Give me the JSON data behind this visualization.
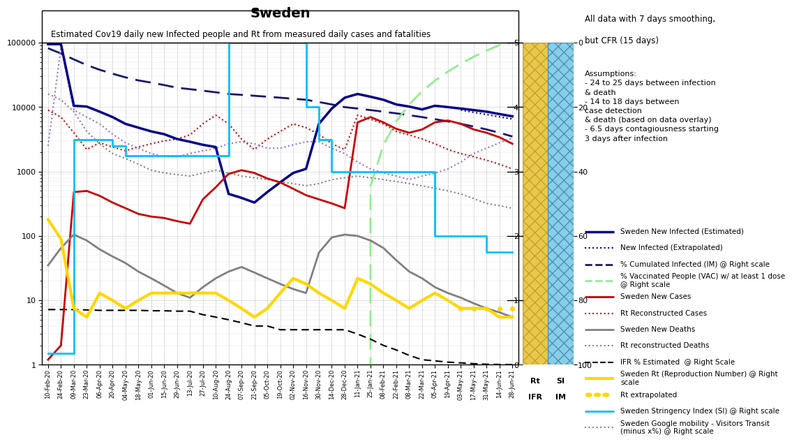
{
  "title": "Sweden",
  "subtitle": "Estimated Cov19 daily new Infected people and Rt from measured daily cases and fatalities",
  "right_text_line1": "All data with 7 days smoothing,",
  "right_text_line2": "but CFR (15 days)",
  "assumptions": "Assumptions:\n- 24 to 25 days between infection\n& death\n- 14 to 18 days between\ncase detection\n& death (based on data overlay)\n- 6.5 days contagiousness starting\n3 days after infection",
  "x_labels": [
    "10-Feb-20",
    "24-Feb-20",
    "09-Mar-20",
    "23-Mar-20",
    "06-Apr-20",
    "20-Apr-20",
    "04-May-20",
    "18-May-20",
    "01-Jun-20",
    "15-Jun-20",
    "29-Jun-20",
    "13-Jul-20",
    "27-Jul-20",
    "10-Aug-20",
    "24-Aug-20",
    "07-Sep-20",
    "21-Sep-20",
    "05-Oct-20",
    "19-Oct-20",
    "02-Nov-20",
    "16-Nov-20",
    "30-Nov-20",
    "14-Dec-20",
    "28-Dec-20",
    "11-Jan-21",
    "25-Jan-21",
    "08-Feb-21",
    "22-Feb-21",
    "08-Mar-21",
    "22-Mar-21",
    "05-Apr-21",
    "19-Apr-21",
    "03-May-21",
    "17-May-21",
    "31-May-21",
    "14-Jun-21",
    "28-Jun-21"
  ],
  "legend_entries": [
    {
      "label": "Sweden New Infected (Estimated)",
      "color": "#00008B",
      "lw": 2.5,
      "ls": "solid",
      "marker": null
    },
    {
      "label": "New Infected (Extrapolated)",
      "color": "#00008B",
      "lw": 1.5,
      "ls": "dotted",
      "marker": null
    },
    {
      "label": "% Cumulated Infected (IM) @ Right scale",
      "color": "#191970",
      "lw": 2,
      "ls": "dashed",
      "marker": null
    },
    {
      "label": "% Vaccinated People (VAC) w/ at least 1 dose\n@ Right scale",
      "color": "#90EE90",
      "lw": 2,
      "ls": "dashed",
      "marker": null
    },
    {
      "label": "Sweden New Cases",
      "color": "#CC0000",
      "lw": 2,
      "ls": "solid",
      "marker": null
    },
    {
      "label": "Rt Reconstructed Cases",
      "color": "#CC0000",
      "lw": 1.5,
      "ls": "dotted",
      "marker": null
    },
    {
      "label": "Sweden New Deaths",
      "color": "#808080",
      "lw": 2,
      "ls": "solid",
      "marker": null
    },
    {
      "label": "Rt reconstructed Deaths",
      "color": "#808080",
      "lw": 1.5,
      "ls": "dotted",
      "marker": null
    },
    {
      "label": "IFR % Estimated  @ Right Scale",
      "color": "#000000",
      "lw": 1.5,
      "ls": "dashed",
      "marker": null
    },
    {
      "label": "Sweden Rt (Reproduction Number) @ Right\nscale",
      "color": "#FFD700",
      "lw": 3,
      "ls": "solid",
      "marker": null
    },
    {
      "label": "Rt extrapolated",
      "color": "#FFD700",
      "lw": 2,
      "ls": "dotted",
      "marker": "o"
    },
    {
      "label": "Sweden Stringency Index (SI) @ Right scale",
      "color": "#00BFFF",
      "lw": 2,
      "ls": "solid",
      "marker": null
    },
    {
      "label": "Sweden Google mobility - Visitors Transit\n(minus x%) @ Right scale",
      "color": "#9370DB",
      "lw": 1.5,
      "ls": "dotted",
      "marker": null
    }
  ],
  "ylim": [
    1,
    100000
  ],
  "bg_color": "#FFFFFF",
  "plot_bg": "#FFFFFF",
  "grid_color": "#CCCCCC",
  "col_gold": "#E8C84A",
  "col_blue": "#87CEEB",
  "title_fontsize": 14,
  "subtitle_fontsize": 9
}
